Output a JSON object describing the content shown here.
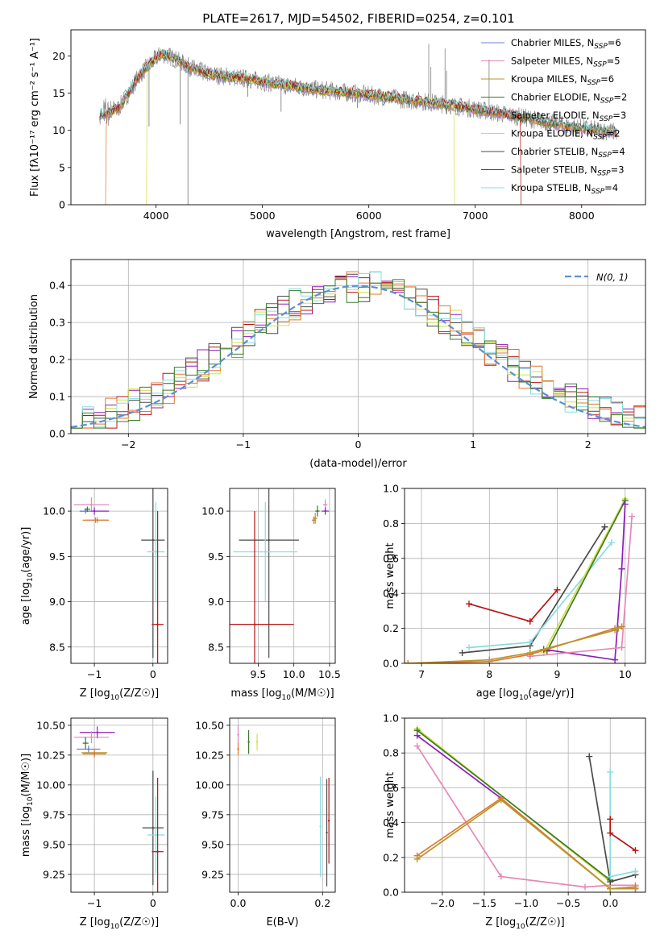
{
  "figure_title": "PLATE=2617, MJD=54502, FIBERID=0254, z=0.101",
  "colors": {
    "Chabrier MILES": "#6a7fd6",
    "Salpeter MILES": "#e488b8",
    "Kroupa MILES": "#b8962a",
    "Chabrier ELODIE": "#3a7a2a",
    "Salpeter ELODIE": "#e07830",
    "Kroupa ELODIE": "#d4e040",
    "Chabrier STELIB": "#4a4a4a",
    "Salpeter STELIB": "#b81414",
    "Kroupa STELIB": "#88dce0",
    "purple": "#8c1fb8",
    "gaussian": "#5b8fd6",
    "data": "#808080"
  },
  "chart_data": [
    {
      "id": "spectrum",
      "type": "line",
      "title": "PLATE=2617, MJD=54502, FIBERID=0254, z=0.101",
      "xlabel": "wavelength [Angstrom, rest frame]",
      "ylabel": "Flux [fλ10⁻¹⁷ erg cm⁻² s⁻¹ A⁻¹]",
      "xlim": [
        3200,
        8600
      ],
      "ylim": [
        0,
        23.5
      ],
      "xticks": [
        4000,
        5000,
        6000,
        7000,
        8000
      ],
      "yticks": [
        0,
        5,
        10,
        15,
        20
      ],
      "grid": false,
      "legend": "top-right",
      "legend_entries": [
        "Chabrier MILES, N_SSP=6",
        "Salpeter MILES, N_SSP=5",
        "Kroupa MILES, N_SSP=6",
        "Chabrier ELODIE, N_SSP=2",
        "Salpeter ELODIE, N_SSP=3",
        "Kroupa ELODIE, N_SSP=2",
        "Chabrier STELIB, N_SSP=4",
        "Salpeter STELIB, N_SSP=3",
        "Kroupa STELIB, N_SSP=4"
      ],
      "legend_text": [
        {
          "base": "Chabrier MILES, N",
          "sub": "SSP",
          "tail": "=6"
        },
        {
          "base": "Salpeter MILES, N",
          "sub": "SSP",
          "tail": "=5"
        },
        {
          "base": "Kroupa MILES, N",
          "sub": "SSP",
          "tail": "=6"
        },
        {
          "base": "Chabrier ELODIE, N",
          "sub": "SSP",
          "tail": "=2"
        },
        {
          "base": "Salpeter ELODIE, N",
          "sub": "SSP",
          "tail": "=3"
        },
        {
          "base": "Kroupa ELODIE, N",
          "sub": "SSP",
          "tail": "=2"
        },
        {
          "base": "Chabrier STELIB, N",
          "sub": "SSP",
          "tail": "=4"
        },
        {
          "base": "Salpeter STELIB, N",
          "sub": "SSP",
          "tail": "=3"
        },
        {
          "base": "Kroupa STELIB, N",
          "sub": "SSP",
          "tail": "=4"
        }
      ],
      "continuum": {
        "x": [
          3450,
          3550,
          3650,
          3750,
          3850,
          3950,
          4050,
          4150,
          4300,
          4500,
          4700,
          4900,
          5100,
          5300,
          5500,
          5700,
          5900,
          6100,
          6300,
          6500,
          6700,
          6900,
          7100,
          7300,
          7500,
          7700,
          7900,
          8100,
          8300
        ],
        "y": [
          12.0,
          12.3,
          13.0,
          15.2,
          17.5,
          19.0,
          20.3,
          19.8,
          18.6,
          17.5,
          17.2,
          16.8,
          16.3,
          15.9,
          15.5,
          15.2,
          14.9,
          14.6,
          14.2,
          13.9,
          13.5,
          13.1,
          12.6,
          12.1,
          11.6,
          11.0,
          10.5,
          10.1,
          9.8
        ]
      },
      "model_dropouts": [
        {
          "series": "Salpeter ELODIE",
          "x_start": 3200,
          "x_end": 3530
        },
        {
          "series": "Kroupa ELODIE",
          "x_start": 3200,
          "x_end": 3910
        },
        {
          "series": "Salpeter STELIB",
          "x_start": 7430,
          "x_end": 8600
        },
        {
          "series": "Kroupa ELODIE",
          "x_start": 6800,
          "x_end": 8600
        }
      ],
      "absorption_lines": [
        {
          "x": 3934,
          "y": 10.5
        },
        {
          "x": 4227,
          "y": 10.8
        },
        {
          "x": 4300,
          "y": 0.0
        },
        {
          "x": 4862,
          "y": 14.5
        },
        {
          "x": 5175,
          "y": 12.5
        },
        {
          "x": 5893,
          "y": 13.0
        }
      ],
      "data_spikes": [
        {
          "x": 6563,
          "y": 21.6
        },
        {
          "x": 6583,
          "y": 18.5
        },
        {
          "x": 6716,
          "y": 21.0
        },
        {
          "x": 6730,
          "y": 18.0
        },
        {
          "x": 7130,
          "y": 19.5
        }
      ]
    },
    {
      "id": "residual_hist",
      "type": "line",
      "xlabel": "(data-model)/error",
      "ylabel": "Normed distribution",
      "xlim": [
        -2.5,
        2.5
      ],
      "ylim": [
        0,
        0.47
      ],
      "xticks": [
        -2,
        -1,
        0,
        1,
        2
      ],
      "yticks": [
        0.0,
        0.1,
        0.2,
        0.3,
        0.4
      ],
      "grid": true,
      "legend": "top-right",
      "legend_entries": [
        "N(0,1)"
      ],
      "gaussian": {
        "mean": 0,
        "sigma": 1
      }
    },
    {
      "id": "age_vs_Z",
      "type": "scatter",
      "xlabel": "Z [log10(Z/Z☉)]",
      "ylabel": "age  [log10(age/yr)]",
      "xlim": [
        -1.4,
        0.25
      ],
      "ylim": [
        8.32,
        10.25
      ],
      "xticks": [
        -1,
        0
      ],
      "yticks": [
        8.5,
        9.0,
        9.5,
        10.0
      ],
      "grid": true,
      "points": [
        {
          "series": "Salpeter MILES",
          "x": -1.05,
          "y": 10.07,
          "xerr": 0.3,
          "yerr": 0.08
        },
        {
          "series": "purple",
          "x": -1.0,
          "y": 10.0,
          "xerr": 0.25,
          "yerr": 0.04
        },
        {
          "series": "Kroupa MILES",
          "x": -0.95,
          "y": 9.9,
          "xerr": 0.2,
          "yerr": 0.03
        },
        {
          "series": "Salpeter ELODIE",
          "x": -0.98,
          "y": 9.9,
          "xerr": 0.22,
          "yerr": 0.03
        },
        {
          "series": "Chabrier MILES",
          "x": -1.15,
          "y": 10.0,
          "xerr": 0.1,
          "yerr": 0.03
        },
        {
          "series": "Chabrier ELODIE",
          "x": -1.12,
          "y": 10.02,
          "xerr": 0.05,
          "yerr": 0.03
        },
        {
          "series": "Chabrier STELIB",
          "x": 0.0,
          "y": 9.68,
          "xerr": 0.2,
          "yerr": 1.3
        },
        {
          "series": "Kroupa STELIB",
          "x": 0.05,
          "y": 9.55,
          "xerr": 0.15,
          "yerr": 0.55
        },
        {
          "series": "Salpeter STELIB",
          "x": 0.08,
          "y": 8.75,
          "xerr": 0.1,
          "yerr": 1.25
        }
      ]
    },
    {
      "id": "age_vs_mass",
      "type": "scatter",
      "xlabel": "mass [log10(M/M☉)]",
      "ylabel": "",
      "xlim": [
        9.1,
        10.58
      ],
      "ylim": [
        8.32,
        10.25
      ],
      "xticks": [
        9.5,
        10.0,
        10.5
      ],
      "yticks": [
        8.5,
        9.0,
        9.5,
        10.0
      ],
      "grid": true,
      "points": [
        {
          "series": "Salpeter MILES",
          "x": 10.44,
          "y": 10.07,
          "xerr": 0.03,
          "yerr": 0.06
        },
        {
          "series": "purple",
          "x": 10.44,
          "y": 10.0,
          "xerr": 0.05,
          "yerr": 0.04
        },
        {
          "series": "Kroupa MILES",
          "x": 10.3,
          "y": 9.92,
          "xerr": 0.03,
          "yerr": 0.06
        },
        {
          "series": "Salpeter ELODIE",
          "x": 10.28,
          "y": 9.9,
          "xerr": 0.03,
          "yerr": 0.04
        },
        {
          "series": "Chabrier ELODIE",
          "x": 10.33,
          "y": 10.0,
          "xerr": 0.03,
          "yerr": 0.06
        },
        {
          "series": "Chabrier STELIB",
          "x": 9.65,
          "y": 9.68,
          "xerr": 0.42,
          "yerr": 1.3
        },
        {
          "series": "Kroupa STELIB",
          "x": 9.6,
          "y": 9.55,
          "xerr": 0.45,
          "yerr": 0.55
        },
        {
          "series": "Salpeter STELIB",
          "x": 9.45,
          "y": 8.75,
          "xerr": 0.55,
          "yerr": 1.25
        }
      ]
    },
    {
      "id": "weight_vs_age",
      "type": "line",
      "xlabel": "age  [log10(age/yr)]",
      "ylabel": "mass weight",
      "xlim": [
        6.75,
        10.3
      ],
      "ylim": [
        0,
        1
      ],
      "xticks": [
        7,
        8,
        9,
        10
      ],
      "yticks": [
        0.0,
        0.2,
        0.4,
        0.6,
        0.8,
        1.0
      ],
      "grid": true,
      "series": [
        {
          "name": "Salpeter STELIB",
          "x": [
            7.7,
            8.6,
            9.0
          ],
          "y": [
            0.34,
            0.24,
            0.42
          ]
        },
        {
          "name": "Chabrier STELIB",
          "x": [
            7.6,
            8.6,
            9.7
          ],
          "y": [
            0.06,
            0.1,
            0.78
          ]
        },
        {
          "name": "Kroupa STELIB",
          "x": [
            7.7,
            8.6,
            9.8
          ],
          "y": [
            0.09,
            0.12,
            0.69
          ]
        },
        {
          "name": "Kroupa ELODIE",
          "x": [
            8.8,
            10.0
          ],
          "y": [
            0.06,
            0.94
          ]
        },
        {
          "name": "Chabrier ELODIE",
          "x": [
            8.85,
            10.0
          ],
          "y": [
            0.07,
            0.93
          ]
        },
        {
          "name": "purple",
          "x": [
            8.8,
            9.85,
            9.95,
            10.0
          ],
          "y": [
            0.08,
            0.02,
            0.54,
            0.91
          ]
        },
        {
          "name": "Salpeter MILES",
          "x": [
            8.6,
            9.95,
            10.1
          ],
          "y": [
            0.04,
            0.09,
            0.84
          ]
        },
        {
          "name": "Salpeter ELODIE",
          "x": [
            6.8,
            8.0,
            8.6,
            9.85,
            9.95
          ],
          "y": [
            0.0,
            0.01,
            0.05,
            0.2,
            0.21
          ]
        },
        {
          "name": "Kroupa MILES",
          "x": [
            6.8,
            8.0,
            8.6,
            9.85,
            9.9
          ],
          "y": [
            0.0,
            0.02,
            0.06,
            0.19,
            0.2
          ]
        }
      ]
    },
    {
      "id": "mass_vs_Z",
      "type": "scatter",
      "xlabel": "Z [log10(Z/Z☉)]",
      "ylabel": "mass [log10(M/M☉)]",
      "xlim": [
        -1.4,
        0.25
      ],
      "ylim": [
        9.1,
        10.56
      ],
      "xticks": [
        -1,
        0
      ],
      "yticks": [
        9.25,
        9.5,
        9.75,
        10.0,
        10.25,
        10.5
      ],
      "grid": true,
      "points": [
        {
          "series": "purple",
          "x": -0.95,
          "y": 10.44,
          "xerr": 0.3,
          "yerr": 0.05
        },
        {
          "series": "Salpeter MILES",
          "x": -1.05,
          "y": 10.4,
          "xerr": 0.3,
          "yerr": 0.05
        },
        {
          "series": "Chabrier MILES",
          "x": -1.1,
          "y": 10.3,
          "xerr": 0.2,
          "yerr": 0.03
        },
        {
          "series": "Kroupa MILES",
          "x": -1.0,
          "y": 10.27,
          "xerr": 0.22,
          "yerr": 0.03
        },
        {
          "series": "Salpeter ELODIE",
          "x": -1.0,
          "y": 10.26,
          "xerr": 0.2,
          "yerr": 0.03
        },
        {
          "series": "Chabrier ELODIE",
          "x": -1.15,
          "y": 10.35,
          "xerr": 0.05,
          "yerr": 0.05
        },
        {
          "series": "Chabrier STELIB",
          "x": 0.0,
          "y": 9.64,
          "xerr": 0.18,
          "yerr": 0.48
        },
        {
          "series": "Kroupa STELIB",
          "x": 0.05,
          "y": 9.58,
          "xerr": 0.15,
          "yerr": 0.32
        },
        {
          "series": "Salpeter STELIB",
          "x": 0.08,
          "y": 9.44,
          "xerr": 0.1,
          "yerr": 0.62
        }
      ]
    },
    {
      "id": "mass_vs_ebv",
      "type": "scatter",
      "xlabel": "E(B-V)",
      "ylabel": "",
      "xlim": [
        -0.02,
        0.23
      ],
      "ylim": [
        9.1,
        10.56
      ],
      "xticks": [
        0.0,
        0.2
      ],
      "yticks": [
        9.25,
        9.5,
        9.75,
        10.0,
        10.25,
        10.5
      ],
      "grid": true,
      "points": [
        {
          "series": "Salpeter MILES",
          "x": 0.0,
          "y": 10.42,
          "xerr": 0.0,
          "yerr": 0.08
        },
        {
          "series": "Salpeter ELODIE",
          "x": 0.0,
          "y": 10.3,
          "xerr": 0.0,
          "yerr": 0.05
        },
        {
          "series": "Chabrier ELODIE",
          "x": 0.025,
          "y": 10.36,
          "xerr": 0.0,
          "yerr": 0.1
        },
        {
          "series": "Kroupa ELODIE",
          "x": 0.045,
          "y": 10.36,
          "xerr": 0.0,
          "yerr": 0.07
        },
        {
          "series": "Kroupa STELIB",
          "x": 0.195,
          "y": 9.65,
          "xerr": 0.0,
          "yerr": 0.42
        },
        {
          "series": "Chabrier STELIB",
          "x": 0.21,
          "y": 9.6,
          "xerr": 0.0,
          "yerr": 0.45
        },
        {
          "series": "Salpeter STELIB",
          "x": 0.215,
          "y": 9.7,
          "xerr": 0.0,
          "yerr": 0.36
        }
      ]
    },
    {
      "id": "weight_vs_Z",
      "type": "line",
      "xlabel": "Z [log10(Z/Z☉)]",
      "ylabel": "mass weight",
      "xlim": [
        -2.45,
        0.42
      ],
      "ylim": [
        0,
        1
      ],
      "xticks": [
        -2.0,
        -1.5,
        -1.0,
        -0.5,
        0.0
      ],
      "yticks": [
        0.0,
        0.2,
        0.4,
        0.6,
        0.8,
        1.0
      ],
      "grid": true,
      "series": [
        {
          "name": "Kroupa ELODIE",
          "x": [
            -2.3,
            0.0
          ],
          "y": [
            0.94,
            0.06
          ]
        },
        {
          "name": "Chabrier ELODIE",
          "x": [
            -2.3,
            0.0
          ],
          "y": [
            0.93,
            0.07
          ]
        },
        {
          "name": "purple",
          "x": [
            -2.3,
            -1.3,
            0.0,
            0.3
          ],
          "y": [
            0.9,
            0.54,
            0.02,
            0.02
          ]
        },
        {
          "name": "Salpeter MILES",
          "x": [
            -2.3,
            -1.3,
            -0.3,
            0.0,
            0.3
          ],
          "y": [
            0.84,
            0.09,
            0.03,
            0.04,
            0.04
          ]
        },
        {
          "name": "Salpeter ELODIE",
          "x": [
            -2.3,
            -1.3,
            0.0,
            0.3
          ],
          "y": [
            0.21,
            0.54,
            0.02,
            0.03
          ]
        },
        {
          "name": "Kroupa MILES",
          "x": [
            -2.3,
            -1.3,
            0.0,
            0.3
          ],
          "y": [
            0.19,
            0.53,
            0.02,
            0.02
          ]
        },
        {
          "name": "Chabrier STELIB",
          "x": [
            -0.25,
            0.0,
            0.3
          ],
          "y": [
            0.78,
            0.06,
            0.1
          ]
        },
        {
          "name": "Kroupa STELIB",
          "x": [
            0.0,
            0.0,
            0.3
          ],
          "y": [
            0.69,
            0.09,
            0.12
          ]
        },
        {
          "name": "Salpeter STELIB",
          "x": [
            0.0,
            0.0,
            0.3
          ],
          "y": [
            0.42,
            0.34,
            0.24
          ]
        }
      ]
    }
  ]
}
